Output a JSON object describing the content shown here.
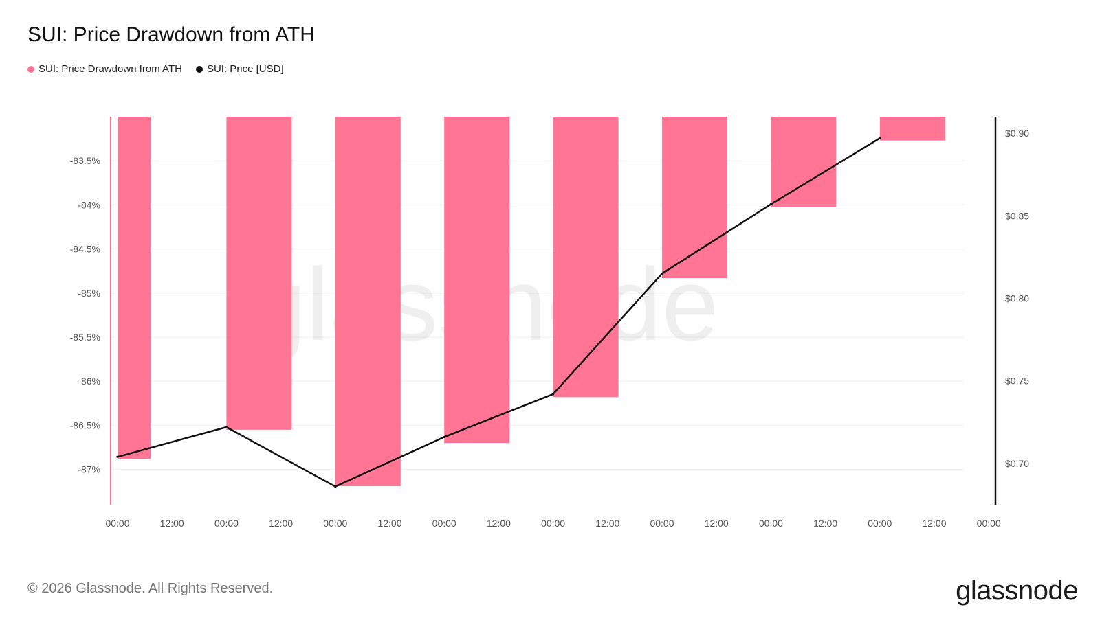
{
  "title": "SUI: Price Drawdown from ATH",
  "legend": [
    {
      "label": "SUI: Price Drawdown from ATH",
      "color": "#ff7593"
    },
    {
      "label": "SUI: Price [USD]",
      "color": "#111111"
    }
  ],
  "footer": "© 2026 Glassnode. All Rights Reserved.",
  "brand": "glassnode",
  "watermark": "glassnode",
  "colors": {
    "bar": "#ff7593",
    "line": "#111111",
    "grid": "#eeeeee",
    "axis": "#111111"
  },
  "chart_data": {
    "type": "bar",
    "title": "SUI: Price Drawdown from ATH",
    "x_tick_labels": [
      "00:00",
      "12:00",
      "00:00",
      "12:00",
      "00:00",
      "12:00",
      "00:00",
      "12:00",
      "00:00",
      "12:00",
      "00:00",
      "12:00",
      "00:00",
      "12:00",
      "00:00",
      "12:00",
      "00:00"
    ],
    "left_axis": {
      "ticks": [
        -83.5,
        -84,
        -84.5,
        -85,
        -85.5,
        -86,
        -86.5,
        -87
      ],
      "tick_labels": [
        "-83.5%",
        "-84%",
        "-84.5%",
        "-85%",
        "-85.5%",
        "-86%",
        "-86.5%",
        "-87%"
      ],
      "ylim": [
        -87.4,
        -83.0
      ],
      "grid": true
    },
    "right_axis": {
      "ticks": [
        0.7,
        0.75,
        0.8,
        0.85,
        0.9
      ],
      "tick_labels": [
        "$0.70",
        "$0.75",
        "$0.80",
        "$0.85",
        "$0.90"
      ],
      "ylim": [
        0.675,
        0.91
      ]
    },
    "series": [
      {
        "name": "SUI: Price Drawdown from ATH",
        "type": "bar",
        "axis": "left",
        "x_index": [
          0,
          2,
          4,
          6,
          8,
          10,
          12,
          14
        ],
        "values": [
          -86.88,
          -86.55,
          -87.19,
          -86.7,
          -86.18,
          -84.83,
          -84.02,
          -83.27
        ]
      },
      {
        "name": "SUI: Price [USD]",
        "type": "line",
        "axis": "right",
        "x_index": [
          0,
          2,
          4,
          6,
          8,
          10,
          12,
          14
        ],
        "values": [
          0.704,
          0.722,
          0.686,
          0.716,
          0.742,
          0.815,
          0.857,
          0.897
        ]
      }
    ]
  }
}
